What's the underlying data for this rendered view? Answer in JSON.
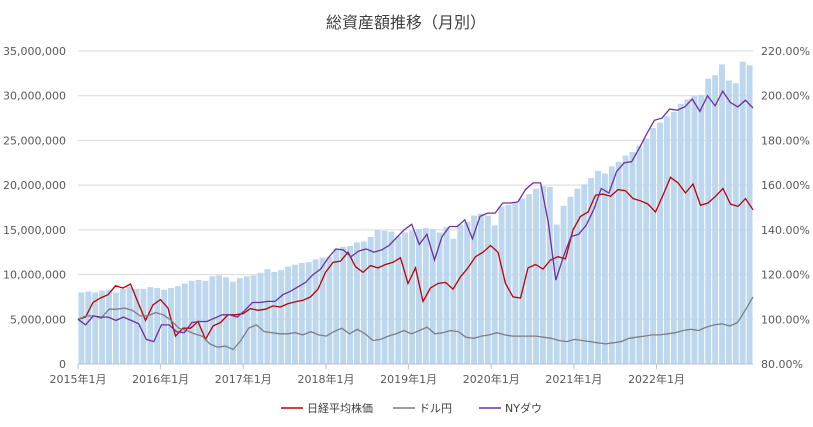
{
  "chart_data": {
    "type": "bar",
    "title": "総資産額推移（月別）",
    "xlabel": "",
    "ylabel": "",
    "y_left": {
      "ylim": [
        0,
        35000000
      ],
      "ticks": [
        "0",
        "5,000,000",
        "10,000,000",
        "15,000,000",
        "20,000,000",
        "25,000,000",
        "30,000,000",
        "35,000,000"
      ]
    },
    "y_right": {
      "ylim": [
        80,
        220
      ],
      "ticks": [
        "80.00%",
        "100.00%",
        "120.00%",
        "140.00%",
        "160.00%",
        "180.00%",
        "200.00%",
        "220.00%"
      ]
    },
    "x_ticks": [
      "2015年1月",
      "2016年1月",
      "2017年1月",
      "2018年1月",
      "2019年1月",
      "2020年1月",
      "2021年1月",
      "2022年1月"
    ],
    "grid": true,
    "legend_position": "bottom",
    "colors": {
      "bar": "#bdd7ee",
      "nikkei": "#c00000",
      "usdjpy": "#7f7f7f",
      "nydow": "#7030a0",
      "grid": "#d9d9d9",
      "axis": "#bfbfbf"
    },
    "series": [
      {
        "name": "",
        "axis": "left",
        "kind": "bar",
        "values": [
          8000000,
          8100000,
          8000000,
          8200000,
          8300000,
          8000000,
          8400000,
          8600000,
          8400000,
          8400000,
          8600000,
          8500000,
          8300000,
          8500000,
          8700000,
          9000000,
          9300000,
          9400000,
          9300000,
          9800000,
          9900000,
          9700000,
          9200000,
          9600000,
          9800000,
          9900000,
          10200000,
          10600000,
          10300000,
          10500000,
          10900000,
          11100000,
          11300000,
          11400000,
          11700000,
          11900000,
          12000000,
          12900000,
          13100000,
          13200000,
          13600000,
          13700000,
          14200000,
          15000000,
          14900000,
          14800000,
          14300000,
          14700000,
          14900000,
          15100000,
          15200000,
          15100000,
          14700000,
          15300000,
          14000000,
          15600000,
          15900000,
          16600000,
          16800000,
          16600000,
          15500000,
          17600000,
          17800000,
          18000000,
          18500000,
          19000000,
          19600000,
          19900000,
          19800000,
          15600000,
          17700000,
          18700000,
          19600000,
          20100000,
          20800000,
          21600000,
          21300000,
          22100000,
          22600000,
          23300000,
          23700000,
          24400000,
          25200000,
          26400000,
          27000000,
          27700000,
          28200000,
          29100000,
          29600000,
          30000000,
          30100000,
          31900000,
          32300000,
          33500000,
          31700000,
          31400000,
          33800000,
          33400000
        ],
        "note_months_start": "2015年1月"
      },
      {
        "name": "日経平均株価",
        "axis": "right",
        "kind": "line",
        "values": [
          100.0,
          101.0,
          107.5,
          109.5,
          111.0,
          115.0,
          114.0,
          115.8,
          107.5,
          99.5,
          106.5,
          108.8,
          105.0,
          92.5,
          96.0,
          96.0,
          99.0,
          91.0,
          97.0,
          98.5,
          102.0,
          102.0,
          102.5,
          104.8,
          104.0,
          104.5,
          106.0,
          105.5,
          107.0,
          107.8,
          108.5,
          110.0,
          113.5,
          121.0,
          125.5,
          126.0,
          130.0,
          123.5,
          121.0,
          124.0,
          123.0,
          124.5,
          125.5,
          127.5,
          116.0,
          123.0,
          108.0,
          114.0,
          116.0,
          116.5,
          113.5,
          119.0,
          123.0,
          128.0,
          130.0,
          133.0,
          130.0,
          116.0,
          110.0,
          109.5,
          123.0,
          124.5,
          122.5,
          126.5,
          128.0,
          127.0,
          140.0,
          146.0,
          148.0,
          155.5,
          156.0,
          155.0,
          158.0,
          157.5,
          154.0,
          153.0,
          151.5,
          148.0,
          155.5,
          163.5,
          161.0,
          156.5,
          160.5,
          151.0,
          152.0,
          155.0,
          158.5,
          151.5,
          150.5,
          154.0,
          149.0
        ],
        "values_note": "index vs 2015年1月 (%), values plotted on right axis"
      },
      {
        "name": "ドル円",
        "axis": "right",
        "kind": "line",
        "values": [
          100.0,
          101.5,
          101.5,
          100.5,
          104.5,
          104.5,
          105.0,
          104.0,
          101.5,
          101.5,
          103.0,
          102.0,
          99.5,
          96.0,
          95.0,
          93.5,
          92.5,
          89.0,
          87.5,
          88.0,
          86.5,
          90.5,
          96.0,
          97.5,
          94.5,
          94.0,
          93.5,
          93.5,
          94.0,
          93.0,
          94.5,
          93.0,
          92.5,
          94.5,
          96.0,
          93.5,
          95.5,
          93.5,
          90.5,
          91.0,
          92.5,
          93.5,
          95.0,
          93.5,
          95.0,
          96.5,
          93.5,
          94.0,
          95.0,
          94.5,
          92.0,
          91.5,
          92.5,
          93.0,
          94.0,
          93.0,
          92.5,
          92.5,
          92.5,
          92.5,
          92.0,
          91.5,
          90.5,
          90.0,
          91.0,
          90.5,
          90.0,
          89.5,
          89.0,
          89.5,
          90.0,
          91.5,
          92.0,
          92.5,
          93.0,
          93.0,
          93.5,
          94.0,
          95.0,
          95.5,
          95.0,
          96.5,
          97.5,
          98.0,
          97.0,
          98.5,
          104.0,
          110.0
        ],
        "values_note": "index vs 2015年1月 (%), values plotted on right axis"
      },
      {
        "name": "NYダウ",
        "axis": "right",
        "kind": "line",
        "values": [
          100.0,
          97.5,
          101.5,
          101.0,
          101.0,
          99.5,
          101.0,
          99.5,
          98.0,
          91.0,
          90.0,
          97.5,
          97.5,
          94.5,
          94.0,
          98.5,
          99.0,
          99.0,
          100.5,
          102.0,
          102.0,
          101.0,
          104.0,
          107.5,
          107.5,
          108.0,
          108.0,
          111.0,
          112.5,
          114.5,
          116.5,
          120.0,
          122.5,
          127.5,
          131.5,
          131.0,
          128.0,
          130.5,
          131.5,
          130.0,
          131.0,
          133.0,
          136.5,
          140.0,
          142.5,
          133.5,
          138.0,
          126.5,
          137.0,
          141.5,
          141.5,
          144.5,
          136.0,
          146.0,
          147.5,
          147.5,
          152.0,
          152.0,
          152.5,
          158.0,
          161.0,
          161.0,
          143.5,
          117.5,
          128.0,
          137.0,
          138.0,
          142.0,
          149.0,
          158.5,
          156.5,
          166.0,
          170.0,
          170.5,
          176.5,
          183.0,
          189.0,
          190.0,
          194.0,
          193.5,
          195.0,
          198.5,
          193.0,
          200.0,
          195.5,
          202.0,
          197.0,
          195.0,
          198.0,
          194.5
        ],
        "values_note": "index vs 2015年1月 (%), values plotted on right axis"
      }
    ]
  }
}
